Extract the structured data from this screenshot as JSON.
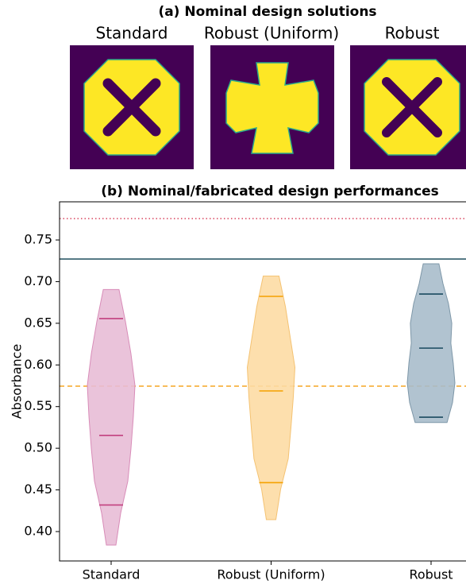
{
  "figure_a": {
    "title": "(a) Nominal design solutions",
    "labels": [
      "Standard",
      "Robust (Uniform)",
      "Robust"
    ]
  },
  "chart_data": {
    "type": "violin",
    "title": "(b) Nominal/fabricated design performances",
    "y_label": "Absorbance",
    "categories": [
      "Standard",
      "Robust (Uniform)",
      "Robust"
    ],
    "ylim": [
      0.3647,
      0.7958
    ],
    "yticks": [
      {
        "value": 0.4,
        "label": "0.40"
      },
      0.45,
      {
        "value": 0.5,
        "label": "0.50"
      },
      0.55,
      {
        "value": 0.6,
        "label": "0.60"
      },
      0.65,
      {
        "value": 0.7,
        "label": "0.70"
      },
      0.75
    ],
    "series": [
      {
        "name": "Standard",
        "color": "#e8bcd6",
        "edge": "#d88cb8",
        "line_color": "#c2407f",
        "min": 0.3838,
        "max": 0.6905,
        "quantiles": [
          0.4319,
          0.5153,
          0.6557
        ],
        "density": [
          0.2,
          0.4,
          0.7,
          0.83,
          0.93,
          1.0,
          0.83,
          0.6,
          0.33
        ]
      },
      {
        "name": "Robust (Uniform)",
        "color": "#fddca4",
        "edge": "#f4c272",
        "line_color": "#f5a100",
        "min": 0.4143,
        "max": 0.7067,
        "quantiles": [
          0.4587,
          0.5688,
          0.6823
        ],
        "density": [
          0.2,
          0.4,
          0.72,
          0.83,
          0.93,
          1.0,
          0.8,
          0.6,
          0.33
        ]
      },
      {
        "name": "Robust",
        "color": "#a8bccb",
        "edge": "#7e97a8",
        "line_color": "#1a4a5f",
        "min": 0.5309,
        "max": 0.7214,
        "quantiles": [
          0.5373,
          0.6202,
          0.6851
        ],
        "density": [
          0.67,
          0.9,
          1.0,
          0.93,
          0.83,
          0.87,
          0.73,
          0.5,
          0.33
        ]
      }
    ],
    "hlines": [
      {
        "value": 0.7757,
        "color": "#d9455f",
        "style": "dotted"
      },
      {
        "value": 0.7271,
        "color": "#1f4e5f",
        "style": "solid"
      },
      {
        "value": 0.5745,
        "color": "#f5a623",
        "style": "dashed"
      }
    ]
  }
}
